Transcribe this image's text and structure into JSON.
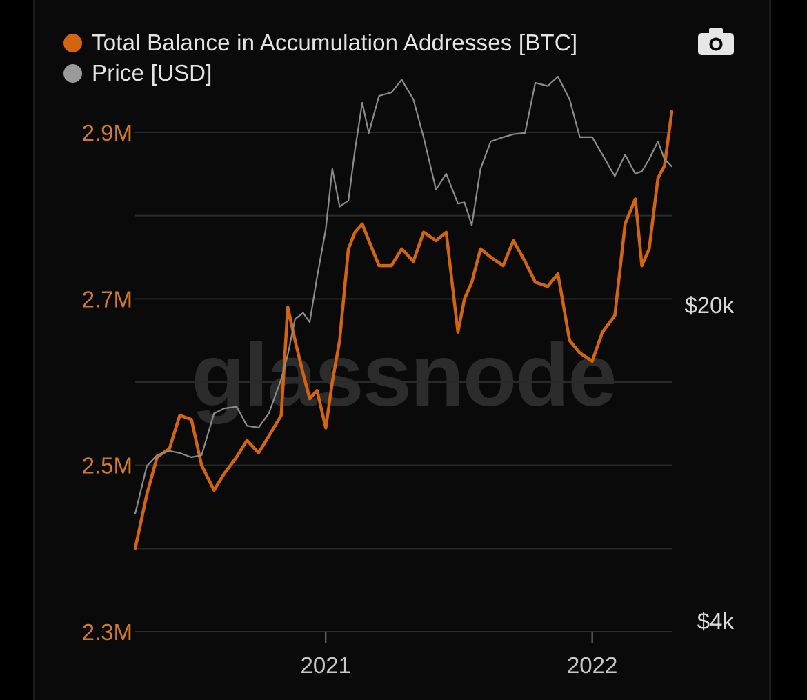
{
  "watermark": "glassnode",
  "colors": {
    "balance": "#d4650f",
    "price": "#8c8c8c",
    "grid": "#2a2a2a",
    "left_axis_text": "#d27a2c",
    "right_axis_text": "#d8d8d8"
  },
  "icons": {
    "screenshot": "camera-icon"
  },
  "chart_data": {
    "type": "line",
    "legend": [
      {
        "name": "Total Balance in Accumulation Addresses [BTC]",
        "color": "#d4650f"
      },
      {
        "name": "Price [USD]",
        "color": "#9a9a9a"
      }
    ],
    "legend_position": "top-left",
    "grid": true,
    "x_axis": {
      "ticks": [
        "2021",
        "2022"
      ],
      "range": [
        "2020-04-15",
        "2022-04-20"
      ]
    },
    "y_left": {
      "ticks": [
        "2.3M",
        "2.5M",
        "2.7M",
        "2.9M"
      ],
      "range": [
        2300000,
        2950000
      ]
    },
    "y_right": {
      "ticks": [
        "$4k",
        "$20k"
      ],
      "scale": "log",
      "range": [
        4000,
        69000
      ]
    },
    "series": [
      {
        "name": "Total Balance in Accumulation Addresses [BTC]",
        "axis": "left",
        "x": [
          "2020-04-15",
          "2020-05-01",
          "2020-05-15",
          "2020-06-01",
          "2020-06-15",
          "2020-07-01",
          "2020-07-15",
          "2020-08-01",
          "2020-08-15",
          "2020-09-01",
          "2020-09-15",
          "2020-10-01",
          "2020-10-15",
          "2020-11-01",
          "2020-11-10",
          "2020-11-20",
          "2020-12-01",
          "2020-12-10",
          "2020-12-20",
          "2021-01-01",
          "2021-01-10",
          "2021-01-20",
          "2021-02-01",
          "2021-02-10",
          "2021-02-20",
          "2021-03-01",
          "2021-03-15",
          "2021-04-01",
          "2021-04-15",
          "2021-05-01",
          "2021-05-15",
          "2021-06-01",
          "2021-06-15",
          "2021-07-01",
          "2021-07-10",
          "2021-07-20",
          "2021-08-01",
          "2021-08-15",
          "2021-09-01",
          "2021-09-15",
          "2021-10-01",
          "2021-10-15",
          "2021-11-01",
          "2021-11-15",
          "2021-12-01",
          "2021-12-15",
          "2022-01-01",
          "2022-01-15",
          "2022-02-01",
          "2022-02-15",
          "2022-03-01",
          "2022-03-10",
          "2022-03-20",
          "2022-04-01",
          "2022-04-10",
          "2022-04-20"
        ],
        "y": [
          2400000,
          2465000,
          2510000,
          2520000,
          2560000,
          2555000,
          2500000,
          2470000,
          2490000,
          2510000,
          2530000,
          2515000,
          2535000,
          2560000,
          2690000,
          2650000,
          2610000,
          2580000,
          2590000,
          2545000,
          2600000,
          2650000,
          2760000,
          2780000,
          2790000,
          2770000,
          2740000,
          2740000,
          2760000,
          2745000,
          2780000,
          2770000,
          2780000,
          2660000,
          2700000,
          2720000,
          2760000,
          2750000,
          2740000,
          2770000,
          2745000,
          2720000,
          2715000,
          2730000,
          2650000,
          2635000,
          2625000,
          2660000,
          2680000,
          2790000,
          2820000,
          2740000,
          2760000,
          2845000,
          2860000,
          2925000
        ]
      },
      {
        "name": "Price [USD]",
        "axis": "right",
        "x": [
          "2020-04-15",
          "2020-05-01",
          "2020-05-15",
          "2020-06-01",
          "2020-06-15",
          "2020-07-01",
          "2020-07-15",
          "2020-08-01",
          "2020-08-15",
          "2020-09-01",
          "2020-09-15",
          "2020-10-01",
          "2020-10-15",
          "2020-11-01",
          "2020-11-10",
          "2020-11-20",
          "2020-12-01",
          "2020-12-10",
          "2020-12-20",
          "2021-01-01",
          "2021-01-10",
          "2021-01-20",
          "2021-02-01",
          "2021-02-10",
          "2021-02-20",
          "2021-03-01",
          "2021-03-15",
          "2021-04-01",
          "2021-04-15",
          "2021-05-01",
          "2021-05-15",
          "2021-06-01",
          "2021-06-15",
          "2021-07-01",
          "2021-07-10",
          "2021-07-20",
          "2021-08-01",
          "2021-08-15",
          "2021-09-01",
          "2021-09-15",
          "2021-10-01",
          "2021-10-15",
          "2021-11-01",
          "2021-11-15",
          "2021-12-01",
          "2021-12-15",
          "2022-01-01",
          "2022-01-15",
          "2022-02-01",
          "2022-02-15",
          "2022-03-01",
          "2022-03-10",
          "2022-03-20",
          "2022-04-01",
          "2022-04-10",
          "2022-04-20"
        ],
        "y": [
          6900,
          8800,
          9300,
          9500,
          9400,
          9200,
          9300,
          11500,
          11800,
          11900,
          10800,
          10700,
          11500,
          13700,
          15500,
          18600,
          19200,
          18300,
          23000,
          29400,
          40000,
          33000,
          34000,
          44000,
          56000,
          48000,
          58000,
          59000,
          63000,
          57000,
          47000,
          36000,
          39000,
          33500,
          33700,
          30000,
          40000,
          46000,
          47000,
          47700,
          48000,
          62000,
          61000,
          64000,
          57000,
          47000,
          47000,
          43000,
          38500,
          43000,
          39000,
          39500,
          42000,
          46000,
          42000,
          40500
        ]
      }
    ]
  }
}
